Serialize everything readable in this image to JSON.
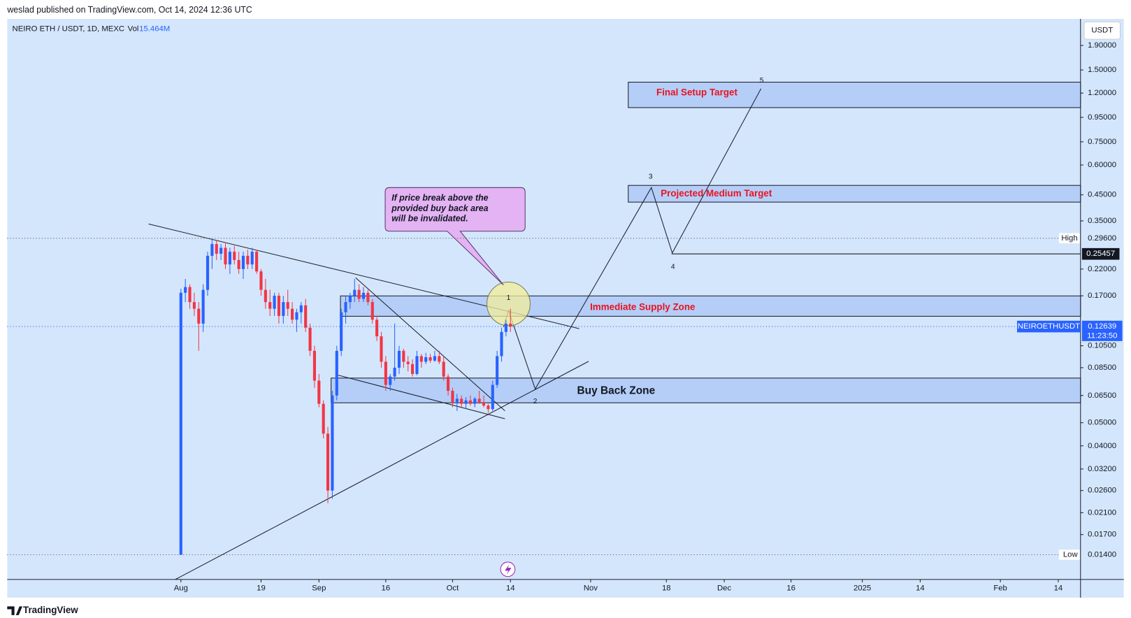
{
  "header": {
    "publisher": "weslad published on TradingView.com, Oct 14, 2024 12:36 UTC",
    "footer_brand": "TradingView"
  },
  "chart_data": {
    "type": "candlestick",
    "title": "NEIRO ETH / USDT, 1D, MEXC",
    "volume_label": "Vol",
    "volume": "15.464M",
    "currency": "USDT",
    "log_scale": true,
    "grid": false,
    "up_color": "#2962ff",
    "down_color": "#f23645",
    "ylim": [
      0.01103,
      2.454
    ],
    "xlim": [
      "2024-06-23",
      "2025-02-19"
    ],
    "yticks": [
      {
        "value": 1.9,
        "label": "1.90000"
      },
      {
        "value": 1.5,
        "label": "1.50000"
      },
      {
        "value": 1.2,
        "label": "1.20000"
      },
      {
        "value": 0.95,
        "label": "0.95000"
      },
      {
        "value": 0.75,
        "label": "0.75000"
      },
      {
        "value": 0.6,
        "label": "0.60000"
      },
      {
        "value": 0.45,
        "label": "0.45000"
      },
      {
        "value": 0.35,
        "label": "0.35000"
      },
      {
        "value": 0.22,
        "label": "0.22000"
      },
      {
        "value": 0.17,
        "label": "0.17000"
      },
      {
        "value": 0.105,
        "label": "0.10500"
      },
      {
        "value": 0.085,
        "label": "0.08500"
      },
      {
        "value": 0.065,
        "label": "0.06500"
      },
      {
        "value": 0.05,
        "label": "0.05000"
      },
      {
        "value": 0.04,
        "label": "0.04000"
      },
      {
        "value": 0.032,
        "label": "0.03200"
      },
      {
        "value": 0.026,
        "label": "0.02600"
      },
      {
        "value": 0.021,
        "label": "0.02100"
      },
      {
        "value": 0.017,
        "label": "0.01700"
      }
    ],
    "xticks": [
      {
        "value": "2024-08-01",
        "label": "Aug"
      },
      {
        "value": "2024-08-19",
        "label": "19"
      },
      {
        "value": "2024-09-01",
        "label": "Sep"
      },
      {
        "value": "2024-09-16",
        "label": "16"
      },
      {
        "value": "2024-10-01",
        "label": "Oct"
      },
      {
        "value": "2024-10-14",
        "label": "14"
      },
      {
        "value": "2024-11-01",
        "label": "Nov"
      },
      {
        "value": "2024-11-18",
        "label": "18"
      },
      {
        "value": "2024-12-01",
        "label": "Dec"
      },
      {
        "value": "2024-12-16",
        "label": "16"
      },
      {
        "value": "2025-01-01",
        "label": "2025"
      },
      {
        "value": "2025-01-14",
        "label": "14"
      },
      {
        "value": "2025-02-01",
        "label": "Feb"
      },
      {
        "value": "2025-02-14",
        "label": "14"
      }
    ],
    "markers": [
      {
        "name": "High",
        "value": 0.296,
        "value_label": "0.29600"
      },
      {
        "name": "Low",
        "value": 0.014,
        "value_label": "0.01400"
      }
    ],
    "price_line": 0.25457,
    "last_price": {
      "symbol": "NEIROETHUSDT",
      "value": 0.12639,
      "countdown": "11:23:50"
    },
    "x": [
      "2024-08-01",
      "2024-08-02",
      "2024-08-03",
      "2024-08-04",
      "2024-08-05",
      "2024-08-06",
      "2024-08-07",
      "2024-08-08",
      "2024-08-09",
      "2024-08-10",
      "2024-08-11",
      "2024-08-12",
      "2024-08-13",
      "2024-08-14",
      "2024-08-15",
      "2024-08-16",
      "2024-08-17",
      "2024-08-18",
      "2024-08-19",
      "2024-08-20",
      "2024-08-21",
      "2024-08-22",
      "2024-08-23",
      "2024-08-24",
      "2024-08-25",
      "2024-08-26",
      "2024-08-27",
      "2024-08-28",
      "2024-08-29",
      "2024-08-30",
      "2024-08-31",
      "2024-09-01",
      "2024-09-02",
      "2024-09-03",
      "2024-09-04",
      "2024-09-05",
      "2024-09-06",
      "2024-09-07",
      "2024-09-08",
      "2024-09-09",
      "2024-09-10",
      "2024-09-11",
      "2024-09-12",
      "2024-09-13",
      "2024-09-14",
      "2024-09-15",
      "2024-09-16",
      "2024-09-17",
      "2024-09-18",
      "2024-09-19",
      "2024-09-20",
      "2024-09-21",
      "2024-09-22",
      "2024-09-23",
      "2024-09-24",
      "2024-09-25",
      "2024-09-26",
      "2024-09-27",
      "2024-09-28",
      "2024-09-29",
      "2024-09-30",
      "2024-10-01",
      "2024-10-02",
      "2024-10-03",
      "2024-10-04",
      "2024-10-05",
      "2024-10-06",
      "2024-10-07",
      "2024-10-08",
      "2024-10-09",
      "2024-10-10",
      "2024-10-11",
      "2024-10-12",
      "2024-10-13",
      "2024-10-14"
    ],
    "open": [
      0.014,
      0.175,
      0.185,
      0.16,
      0.15,
      0.13,
      0.18,
      0.25,
      0.28,
      0.255,
      0.27,
      0.23,
      0.26,
      0.24,
      0.22,
      0.25,
      0.23,
      0.26,
      0.215,
      0.18,
      0.16,
      0.15,
      0.17,
      0.14,
      0.16,
      0.15,
      0.135,
      0.145,
      0.155,
      0.125,
      0.1,
      0.075,
      0.06,
      0.045,
      0.026,
      0.065,
      0.1,
      0.145,
      0.16,
      0.17,
      0.18,
      0.165,
      0.175,
      0.16,
      0.135,
      0.115,
      0.09,
      0.072,
      0.078,
      0.085,
      0.1,
      0.09,
      0.088,
      0.08,
      0.095,
      0.09,
      0.094,
      0.091,
      0.095,
      0.09,
      0.078,
      0.068,
      0.061,
      0.063,
      0.06,
      0.062,
      0.06,
      0.063,
      0.061,
      0.059,
      0.057,
      0.072,
      0.095,
      0.12,
      0.13
    ],
    "high": [
      0.182,
      0.2,
      0.19,
      0.175,
      0.16,
      0.19,
      0.26,
      0.295,
      0.29,
      0.28,
      0.285,
      0.27,
      0.275,
      0.26,
      0.26,
      0.265,
      0.27,
      0.265,
      0.22,
      0.2,
      0.18,
      0.175,
      0.175,
      0.17,
      0.18,
      0.16,
      0.15,
      0.16,
      0.165,
      0.13,
      0.105,
      0.08,
      0.062,
      0.048,
      0.068,
      0.105,
      0.15,
      0.17,
      0.175,
      0.2,
      0.19,
      0.185,
      0.18,
      0.165,
      0.14,
      0.12,
      0.095,
      0.08,
      0.13,
      0.105,
      0.102,
      0.095,
      0.092,
      0.1,
      0.097,
      0.098,
      0.097,
      0.1,
      0.1,
      0.095,
      0.08,
      0.07,
      0.066,
      0.065,
      0.064,
      0.065,
      0.064,
      0.068,
      0.065,
      0.06,
      0.075,
      0.1,
      0.125,
      0.135,
      0.15
    ],
    "low": [
      0.014,
      0.16,
      0.15,
      0.14,
      0.1,
      0.12,
      0.17,
      0.22,
      0.24,
      0.24,
      0.22,
      0.21,
      0.23,
      0.21,
      0.2,
      0.22,
      0.22,
      0.21,
      0.17,
      0.15,
      0.14,
      0.14,
      0.13,
      0.13,
      0.14,
      0.13,
      0.12,
      0.13,
      0.12,
      0.095,
      0.07,
      0.058,
      0.043,
      0.023,
      0.024,
      0.062,
      0.095,
      0.13,
      0.15,
      0.16,
      0.16,
      0.16,
      0.155,
      0.13,
      0.11,
      0.085,
      0.068,
      0.068,
      0.075,
      0.08,
      0.085,
      0.082,
      0.078,
      0.079,
      0.085,
      0.088,
      0.089,
      0.09,
      0.088,
      0.075,
      0.065,
      0.058,
      0.056,
      0.058,
      0.057,
      0.059,
      0.058,
      0.06,
      0.058,
      0.055,
      0.056,
      0.07,
      0.09,
      0.115,
      0.12
    ],
    "close": [
      0.175,
      0.185,
      0.16,
      0.15,
      0.13,
      0.18,
      0.25,
      0.28,
      0.255,
      0.27,
      0.23,
      0.26,
      0.24,
      0.22,
      0.25,
      0.23,
      0.26,
      0.215,
      0.18,
      0.16,
      0.15,
      0.17,
      0.14,
      0.16,
      0.15,
      0.135,
      0.145,
      0.155,
      0.125,
      0.1,
      0.075,
      0.06,
      0.045,
      0.026,
      0.065,
      0.1,
      0.145,
      0.16,
      0.17,
      0.18,
      0.165,
      0.175,
      0.16,
      0.135,
      0.115,
      0.09,
      0.072,
      0.078,
      0.085,
      0.1,
      0.09,
      0.088,
      0.08,
      0.095,
      0.09,
      0.094,
      0.091,
      0.095,
      0.09,
      0.078,
      0.068,
      0.061,
      0.063,
      0.06,
      0.062,
      0.06,
      0.063,
      0.061,
      0.059,
      0.057,
      0.072,
      0.095,
      0.12,
      0.13,
      0.12639
    ],
    "annotations": {
      "final_target": "Final Setup Target",
      "medium_target": "Projected Medium Target",
      "supply_zone": "Immediate Supply Zone",
      "buy_back_zone": "Buy Back Zone",
      "callout": [
        "If price break above the",
        "provided buy back area",
        "will be invalidated."
      ],
      "waves": [
        "1",
        "2",
        "3",
        "4",
        "5"
      ]
    }
  }
}
